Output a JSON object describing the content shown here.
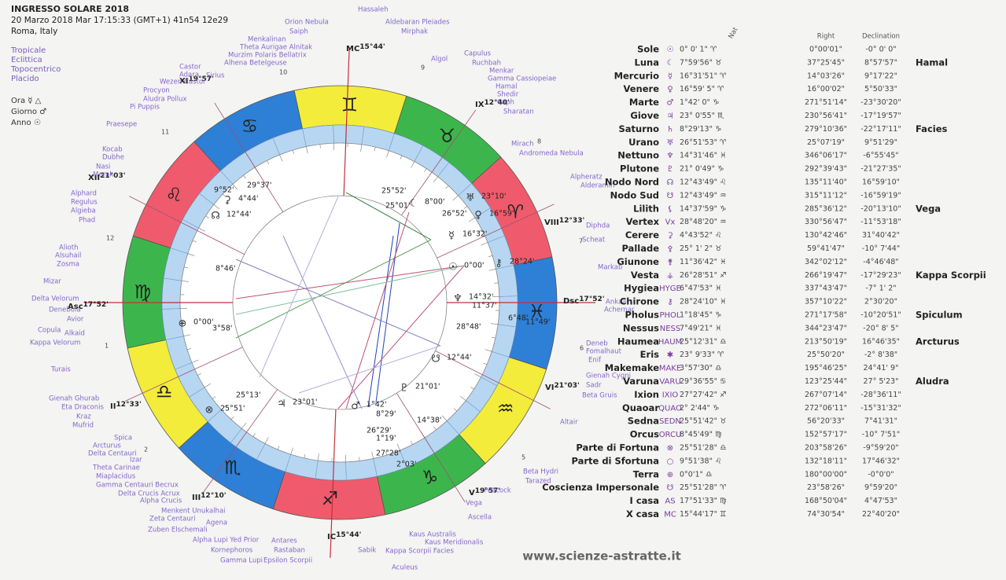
{
  "header": {
    "title": "INGRESSO SOLARE 2018",
    "datetime": "20 Marzo 2018  Mar  17:15:33 (GMT+1) 41n54  12e29",
    "place": "Roma, Italy"
  },
  "options": [
    "Tropicale",
    "Eclittica",
    "Topocentrico",
    "Placido"
  ],
  "settings": [
    "Ora ☿ △",
    "Giorno ♂",
    "Anno ☉"
  ],
  "zodiac_glyphs": [
    "♈",
    "♉",
    "♊",
    "♋",
    "♌",
    "♍",
    "♎",
    "♏",
    "♐",
    "♑",
    "♒",
    "♓"
  ],
  "houses": [
    {
      "label": "Asc",
      "degree": "17°52'"
    },
    {
      "label": "II",
      "degree": "12°33'"
    },
    {
      "label": "III",
      "degree": "12°10'"
    },
    {
      "label": "IC",
      "degree": "15°44'"
    },
    {
      "label": "V",
      "degree": "19°57'"
    },
    {
      "label": "VI",
      "degree": "21°03'"
    },
    {
      "label": "Dsc",
      "degree": "17°52'"
    },
    {
      "label": "VIII",
      "degree": "12°33'"
    },
    {
      "label": "IX",
      "degree": "12°40'"
    },
    {
      "label": "MC",
      "degree": "15°44'"
    },
    {
      "label": "XI",
      "degree": "19°57'"
    },
    {
      "label": "XII",
      "degree": "21°03'"
    }
  ],
  "wheel_labels": [
    {
      "glyph": "",
      "text": "25°52'"
    },
    {
      "glyph": "",
      "text": "25°01'"
    },
    {
      "glyph": "☾",
      "text": "8°00'"
    },
    {
      "glyph": "♅",
      "text": "23°10'"
    },
    {
      "glyph": "",
      "text": "26°52'"
    },
    {
      "glyph": "♀",
      "text": "16°59'"
    },
    {
      "glyph": "☿",
      "text": "16°32'"
    },
    {
      "glyph": "⚷",
      "text": "28°24'"
    },
    {
      "glyph": "☉",
      "text": "0°00'"
    },
    {
      "glyph": "♆",
      "text": "14°32'"
    },
    {
      "glyph": "",
      "text": "11°37'"
    },
    {
      "glyph": "",
      "text": "6°48'"
    },
    {
      "glyph": "",
      "text": "11°49'"
    },
    {
      "glyph": "",
      "text": "28°48'"
    },
    {
      "glyph": "☋",
      "text": "12°44'"
    },
    {
      "glyph": "♇",
      "text": "21°01'"
    },
    {
      "glyph": "",
      "text": "14°38'"
    },
    {
      "glyph": "",
      "text": "8°29'"
    },
    {
      "glyph": "♂",
      "text": "1°42'"
    },
    {
      "glyph": "",
      "text": "1°19'"
    },
    {
      "glyph": "",
      "text": "26°29'"
    },
    {
      "glyph": "",
      "text": "27°28'"
    },
    {
      "glyph": "",
      "text": "2°03'"
    },
    {
      "glyph": "♃",
      "text": "23°01'"
    },
    {
      "glyph": "⊗",
      "text": "25°51'"
    },
    {
      "glyph": "",
      "text": "25°13'"
    },
    {
      "glyph": "⊕",
      "text": "0°00'"
    },
    {
      "glyph": "",
      "text": "3°58'"
    },
    {
      "glyph": "",
      "text": "8°46'"
    },
    {
      "glyph": "☊",
      "text": "12°44'"
    },
    {
      "glyph": "⚳",
      "text": "4°44'"
    },
    {
      "glyph": "",
      "text": "29°37'"
    },
    {
      "glyph": "",
      "text": "9°52'"
    }
  ],
  "sector_numbers": [
    "11",
    "12",
    "1",
    "2",
    "10",
    "9",
    "8",
    "7",
    "6",
    "5"
  ],
  "stars": [
    "Orion Nebula",
    "Saiph",
    "Menkalinan",
    "Theta Aurigae Alnitak",
    "Murzim Polaris Bellatrix",
    "Alhena Betelgeuse",
    "Hassaleh",
    "Aldebaran Pleiades",
    "Mirphak",
    "Algol",
    "Capulus",
    "Ruchbah",
    "Menkar",
    "Gamma Cassiopeiae",
    "Hamal",
    "Shedir",
    "Caph",
    "Sharatan",
    "Mirach",
    "Andromeda Nebula",
    "Alpheratz",
    "Alderamin",
    "Diphda",
    "Scheat",
    "Markab",
    "Ankaa",
    "Achernar",
    "Deneb",
    "Fomalhaut",
    "Enif",
    "Gienah Cygni",
    "Sadr",
    "Beta Gruis",
    "Altair",
    "Beta Hydri",
    "Tarazed",
    "Peacock",
    "Vega",
    "Ascella",
    "Kaus Australis",
    "Kaus Meridionalis",
    "Kappa Scorpii Facies",
    "Sabik",
    "Aculeus",
    "Antares",
    "Rastaban",
    "Epsilon Scorpii",
    "Alpha Lupi Yed Prior",
    "Kornephoros",
    "Gamma Lupi",
    "Zeta Centauri",
    "Zuben Elschemali",
    "Agena",
    "Menkent Unukalhai",
    "Alpha Crucis",
    "Delta Crucis Acrux",
    "Gamma Centauri Becrux",
    "Miaplacidus",
    "Theta Carinae",
    "Izar",
    "Delta Centauri",
    "Arcturus",
    "Spica",
    "Mufrid",
    "Kraz",
    "Eta Draconis",
    "Gienah Ghurab",
    "Turais",
    "Kappa Velorum",
    "Alkaid",
    "Copula",
    "Avior",
    "Denebola",
    "Delta Velorum",
    "Mizar",
    "Zosma",
    "Alsuhail",
    "Alioth",
    "Phad",
    "Algieba",
    "Regulus",
    "Alphard",
    "Merak",
    "Nasi",
    "Dubhe",
    "Kocab",
    "Praesepe",
    "Pi Puppis",
    "Aludra Pollux",
    "Procyon",
    "Wezen Castor",
    "Adara",
    "Castor",
    "Sirius"
  ],
  "table": {
    "headers": [
      "Nat",
      "Right",
      "Declination"
    ],
    "rows": [
      {
        "name": "Sole",
        "glyph": "☉",
        "longitude": "0° 0' 1\" ♈",
        "right_ascension": "0°00'01\"",
        "declination": "-0° 0' 0\""
      },
      {
        "name": "Luna",
        "glyph": "☾",
        "longitude": "7°59'56\" ♉",
        "right_ascension": "37°25'45\"",
        "declination": "8°57'57\"",
        "star": "Hamal"
      },
      {
        "name": "Mercurio",
        "glyph": "☿",
        "longitude": "16°31'51\" ♈",
        "right_ascension": "14°03'26\"",
        "declination": "9°17'22\""
      },
      {
        "name": "Venere",
        "glyph": "♀",
        "longitude": "16°59' 5\" ♈",
        "right_ascension": "16°00'02\"",
        "declination": "5°50'33\""
      },
      {
        "name": "Marte",
        "glyph": "♂",
        "longitude": "1°42' 0\" ♑",
        "right_ascension": "271°51'14\"",
        "declination": "-23°30'20\""
      },
      {
        "name": "Giove",
        "glyph": "♃",
        "longitude": "23° 0'55\" ♏",
        "right_ascension": "230°56'41\"",
        "declination": "-17°19'57\""
      },
      {
        "name": "Saturno",
        "glyph": "♄",
        "longitude": "8°29'13\" ♑",
        "right_ascension": "279°10'36\"",
        "declination": "-22°17'11\"",
        "star": "Facies"
      },
      {
        "name": "Urano",
        "glyph": "♅",
        "longitude": "26°51'53\" ♈",
        "right_ascension": "25°07'19\"",
        "declination": "9°51'29\""
      },
      {
        "name": "Nettuno",
        "glyph": "♆",
        "longitude": "14°31'46\" ♓",
        "right_ascension": "346°06'17\"",
        "declination": "-6°55'45\""
      },
      {
        "name": "Plutone",
        "glyph": "♇",
        "longitude": "21° 0'49\" ♑",
        "right_ascension": "292°39'43\"",
        "declination": "-21°27'35\""
      },
      {
        "name": "Nodo Nord",
        "glyph": "☊",
        "longitude": "12°43'49\" ♌",
        "right_ascension": "135°11'40\"",
        "declination": "16°59'10\""
      },
      {
        "name": "Nodo Sud",
        "glyph": "☋",
        "longitude": "12°43'49\" ♒",
        "right_ascension": "315°11'12\"",
        "declination": "-16°59'19\""
      },
      {
        "name": "Lilith",
        "glyph": "⚸",
        "longitude": "14°37'59\" ♑",
        "right_ascension": "285°36'12\"",
        "declination": "-20°13'10\"",
        "star": "Vega"
      },
      {
        "name": "Vertex",
        "glyph": "Vx",
        "longitude": "28°48'20\" ♒",
        "right_ascension": "330°56'47\"",
        "declination": "-11°53'18\""
      },
      {
        "name": "Cerere",
        "glyph": "⚳",
        "longitude": "4°43'52\" ♌",
        "right_ascension": "130°42'46\"",
        "declination": "31°40'42\""
      },
      {
        "name": "Pallade",
        "glyph": "⚴",
        "longitude": "25° 1' 2\" ♉",
        "right_ascension": "59°41'47\"",
        "declination": "-10° 7'44\""
      },
      {
        "name": "Giunone",
        "glyph": "⚵",
        "longitude": "11°36'42\" ♓",
        "right_ascension": "342°02'12\"",
        "declination": "-4°46'48\""
      },
      {
        "name": "Vesta",
        "glyph": "⚶",
        "longitude": "26°28'51\" ♐",
        "right_ascension": "266°19'47\"",
        "declination": "-17°29'23\"",
        "star": "Kappa Scorpii"
      },
      {
        "name": "Hygiea",
        "glyph": "HYGE",
        "longitude": "6°47'53\" ♓",
        "right_ascension": "337°43'47\"",
        "declination": "-7° 1' 2\""
      },
      {
        "name": "Chirone",
        "glyph": "⚷",
        "longitude": "28°24'10\" ♓",
        "right_ascension": "357°10'22\"",
        "declination": "2°30'20\""
      },
      {
        "name": "Pholus",
        "glyph": "PHOL",
        "longitude": "1°18'45\" ♑",
        "right_ascension": "271°17'58\"",
        "declination": "-10°20'51\"",
        "star": "Spiculum"
      },
      {
        "name": "Nessus",
        "glyph": "NESS",
        "longitude": "7°49'21\" ♓",
        "right_ascension": "344°23'47\"",
        "declination": "-20° 8' 5\""
      },
      {
        "name": "Haumea",
        "glyph": "HAUM",
        "longitude": "25°12'31\" ♎",
        "right_ascension": "213°50'19\"",
        "declination": "16°46'35\"",
        "star": "Arcturus"
      },
      {
        "name": "Eris",
        "glyph": "✱",
        "longitude": "23° 9'33\" ♈",
        "right_ascension": "25°50'20\"",
        "declination": "-2° 8'38\""
      },
      {
        "name": "Makemake",
        "glyph": "MAKE",
        "longitude": "3°57'30\" ♎",
        "right_ascension": "195°46'25\"",
        "declination": "24°41' 9\""
      },
      {
        "name": "Varuna",
        "glyph": "VARU",
        "longitude": "29°36'55\" ♋",
        "right_ascension": "123°25'44\"",
        "declination": "27° 5'23\"",
        "star": "Aludra"
      },
      {
        "name": "Ixion",
        "glyph": "IXIO",
        "longitude": "27°27'42\" ♐",
        "right_ascension": "267°07'14\"",
        "declination": "-28°36'11\""
      },
      {
        "name": "Quaoar",
        "glyph": "QUAO",
        "longitude": "2° 2'44\" ♑",
        "right_ascension": "272°06'11\"",
        "declination": "-15°31'32\""
      },
      {
        "name": "Sedna",
        "glyph": "SEDN",
        "longitude": "25°51'42\" ♉",
        "right_ascension": "56°20'33\"",
        "declination": "7°41'31\""
      },
      {
        "name": "Orcus",
        "glyph": "ORCU",
        "longitude": "8°45'49\" ♍",
        "right_ascension": "152°57'17\"",
        "declination": "-10° 7'51\""
      },
      {
        "name": "Parte di Fortuna",
        "glyph": "⊗",
        "longitude": "25°51'28\" ♎",
        "right_ascension": "203°58'26\"",
        "declination": "-9°59'20\""
      },
      {
        "name": "Parte di Sfortuna",
        "glyph": "○",
        "longitude": "9°51'38\" ♌",
        "right_ascension": "132°18'11\"",
        "declination": "17°46'32\""
      },
      {
        "name": "Terra",
        "glyph": "⊕",
        "longitude": "0°0'1\" ♎",
        "right_ascension": "180°00'00\"",
        "declination": "-0°0'0\""
      },
      {
        "name": "Coscienza Impersonale",
        "glyph": "☋",
        "longitude": "25°51'28\" ♈",
        "right_ascension": "23°58'26\"",
        "declination": "9°59'20\""
      },
      {
        "name": "I casa",
        "glyph": "AS",
        "longitude": "17°51'33\" ♍",
        "right_ascension": "168°50'04\"",
        "declination": "4°47'53\""
      },
      {
        "name": "X casa",
        "glyph": "MC",
        "longitude": "15°44'17\" ♊",
        "right_ascension": "74°30'54\"",
        "declination": "22°40'20\""
      }
    ]
  },
  "footer": "www.scienze-astratte.it"
}
